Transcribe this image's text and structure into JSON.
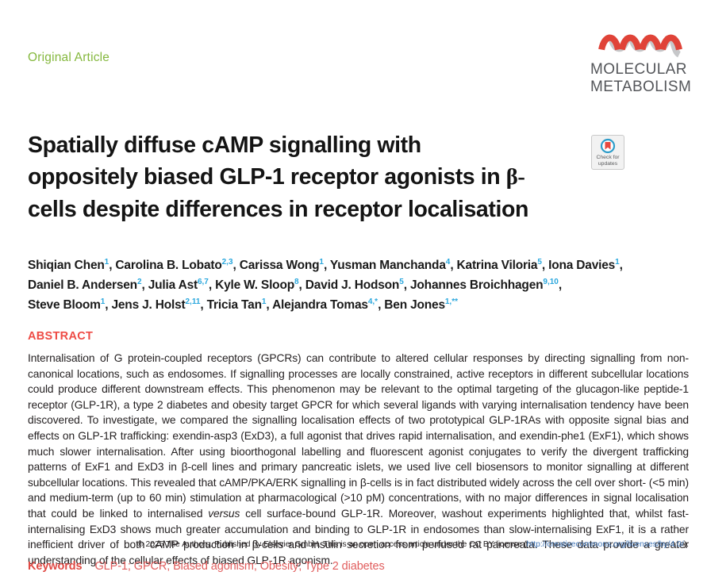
{
  "header": {
    "article_type": "Original Article",
    "journal_name_line1": "MOLECULAR",
    "journal_name_line2": "METABOLISM"
  },
  "badge": {
    "line1": "Check for",
    "line2": "updates"
  },
  "title": {
    "line1": "Spatially diffuse cAMP signalling with",
    "line2_text": "oppositely biased GLP-1 receptor agonists in ",
    "line2_beta": "β-",
    "line3": "cells despite differences in receptor localisation"
  },
  "authors": {
    "lines": [
      [
        {
          "name": "Shiqian Chen",
          "sup": "1",
          "sep": ", "
        },
        {
          "name": "Carolina B. Lobato",
          "sup": "2,3",
          "sep": ", "
        },
        {
          "name": "Carissa Wong",
          "sup": "1",
          "sep": ", "
        },
        {
          "name": "Yusman Manchanda",
          "sup": "4",
          "sep": ", "
        },
        {
          "name": "Katrina Viloria",
          "sup": "5",
          "sep": ", "
        },
        {
          "name": "Iona Davies",
          "sup": "1",
          "sep": ","
        }
      ],
      [
        {
          "name": "Daniel B. Andersen",
          "sup": "2",
          "sep": ", "
        },
        {
          "name": "Julia Ast",
          "sup": "6,7",
          "sep": ", "
        },
        {
          "name": "Kyle W. Sloop",
          "sup": "8",
          "sep": ", "
        },
        {
          "name": "David J. Hodson",
          "sup": "5",
          "sep": ", "
        },
        {
          "name": "Johannes Broichhagen",
          "sup": "9,10",
          "sep": ","
        }
      ],
      [
        {
          "name": "Steve Bloom",
          "sup": "1",
          "sep": ", "
        },
        {
          "name": "Jens J. Holst",
          "sup": "2,11",
          "sep": ", "
        },
        {
          "name": "Tricia Tan",
          "sup": "1",
          "sep": ", "
        },
        {
          "name": "Alejandra Tomas",
          "sup": "4,*",
          "sep": ", "
        },
        {
          "name": "Ben Jones",
          "sup": "1,**",
          "sep": ""
        }
      ]
    ]
  },
  "abstract": {
    "heading": "ABSTRACT",
    "body_part1": "Internalisation of G protein-coupled receptors (GPCRs) can contribute to altered cellular responses by directing signalling from non-canonical locations, such as endosomes. If signalling processes are locally constrained, active receptors in different subcellular locations could produce different downstream effects. This phenomenon may be relevant to the optimal targeting of the glucagon-like peptide-1 receptor (GLP-1R), a type 2 diabetes and obesity target GPCR for which several ligands with varying internalisation tendency have been discovered. To investigate, we compared the signalling localisation effects of two prototypical GLP-1RAs with opposite signal bias and effects on GLP-1R trafficking: exendin-asp3 (ExD3), a full agonist that drives rapid internalisation, and exendin-phe1 (ExF1), which shows much slower internalisation. After using bioorthogonal labelling and fluorescent agonist conjugates to verify the divergent trafficking patterns of ExF1 and ExD3 in β-cell lines and primary pancreatic islets, we used live cell biosensors to monitor signalling at different subcellular locations. This revealed that cAMP/PKA/ERK signalling in β-cells is in fact distributed widely across the cell over short- (<5 min) and medium-term (up to 60 min) stimulation at pharmacological (>10 pM) concentrations, with no major differences in signal localisation that could be linked to internalised ",
    "body_italic": "versus",
    "body_part2": " cell surface-bound GLP-1R. Moreover, washout experiments highlighted that, whilst fast-internalising ExD3 shows much greater accumulation and binding to GLP-1R in endosomes than slow-internalising ExF1, it is a rather inefficient driver of both cAMP production in β-cells and insulin secretion from perfused rat pancreata. These data provide a greater understanding of the cellular effects of biased GLP-1R agonism.",
    "copyright_prefix": "© 2025 The Authors. Published by Elsevier GmbH. This is an open access article under the CC BY license (",
    "copyright_link": "http://creativecommons.org/licenses/by/4.0/",
    "copyright_suffix": ")."
  },
  "keywords": {
    "label": "Keywords",
    "text": "GLP-1; GPCR; Biased agonism; Obesity; Type 2 diabetes"
  },
  "colors": {
    "accent_green": "#85b83e",
    "logo_red": "#e04338",
    "logo_gray": "#c6c7c9",
    "logo_text": "#54565a",
    "heading_red": "#ee4b45",
    "keywords_red": "#e15d5d",
    "superscript_blue": "#2aa7dd",
    "link_blue": "#4076b8",
    "body_text": "#231f20"
  }
}
